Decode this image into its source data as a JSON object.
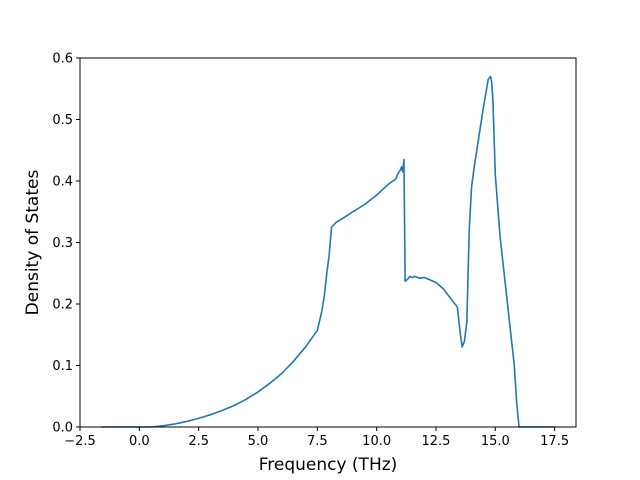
{
  "chart_data": {
    "type": "line",
    "title": "",
    "xlabel": "Frequency (THz)",
    "ylabel": "Density of States",
    "xlim": [
      -2.5,
      18.4
    ],
    "ylim": [
      0,
      0.6
    ],
    "x_ticks": [
      -2.5,
      0.0,
      2.5,
      5.0,
      7.5,
      10.0,
      12.5,
      15.0,
      17.5
    ],
    "x_tick_labels": [
      "−2.5",
      "0.0",
      "2.5",
      "5.0",
      "7.5",
      "10.0",
      "12.5",
      "15.0",
      "17.5"
    ],
    "y_ticks": [
      0.0,
      0.1,
      0.2,
      0.3,
      0.4,
      0.5,
      0.6
    ],
    "y_tick_labels": [
      "0.0",
      "0.1",
      "0.2",
      "0.3",
      "0.4",
      "0.5",
      "0.6"
    ],
    "grid": false,
    "legend": false,
    "line_color": "#1f77b4",
    "series": [
      {
        "x": [
          -1.6,
          -1.0,
          0.0,
          0.5,
          1.0,
          1.5,
          2.0,
          2.5,
          3.0,
          3.5,
          4.0,
          4.5,
          5.0,
          5.5,
          6.0,
          6.5,
          7.0,
          7.5,
          7.7,
          7.8,
          7.9,
          8.0,
          8.1,
          8.3,
          8.6,
          9.0,
          9.5,
          10.0,
          10.5,
          10.8,
          10.9,
          11.0,
          11.05,
          11.1,
          11.15,
          11.2,
          11.3,
          11.4,
          11.5,
          11.6,
          11.8,
          12.0,
          12.2,
          12.5,
          12.8,
          13.0,
          13.2,
          13.4,
          13.5,
          13.6,
          13.65,
          13.7,
          13.8,
          13.9,
          14.0,
          14.1,
          14.3,
          14.5,
          14.7,
          14.8,
          14.85,
          14.9,
          15.0,
          15.2,
          15.4,
          15.6,
          15.8,
          15.9,
          16.0,
          16.5,
          17.0,
          17.5
        ],
        "y": [
          0.0,
          0.0,
          0.0,
          0.0,
          0.002,
          0.005,
          0.009,
          0.014,
          0.02,
          0.027,
          0.035,
          0.045,
          0.057,
          0.071,
          0.087,
          0.107,
          0.13,
          0.157,
          0.19,
          0.215,
          0.25,
          0.28,
          0.325,
          0.333,
          0.34,
          0.35,
          0.362,
          0.377,
          0.395,
          0.403,
          0.412,
          0.418,
          0.423,
          0.415,
          0.435,
          0.237,
          0.24,
          0.245,
          0.243,
          0.245,
          0.242,
          0.243,
          0.24,
          0.235,
          0.225,
          0.215,
          0.205,
          0.195,
          0.16,
          0.13,
          0.135,
          0.14,
          0.17,
          0.32,
          0.39,
          0.42,
          0.47,
          0.52,
          0.565,
          0.57,
          0.56,
          0.53,
          0.41,
          0.31,
          0.24,
          0.17,
          0.1,
          0.04,
          0.0,
          0.0,
          0.0,
          0.0
        ]
      }
    ]
  }
}
